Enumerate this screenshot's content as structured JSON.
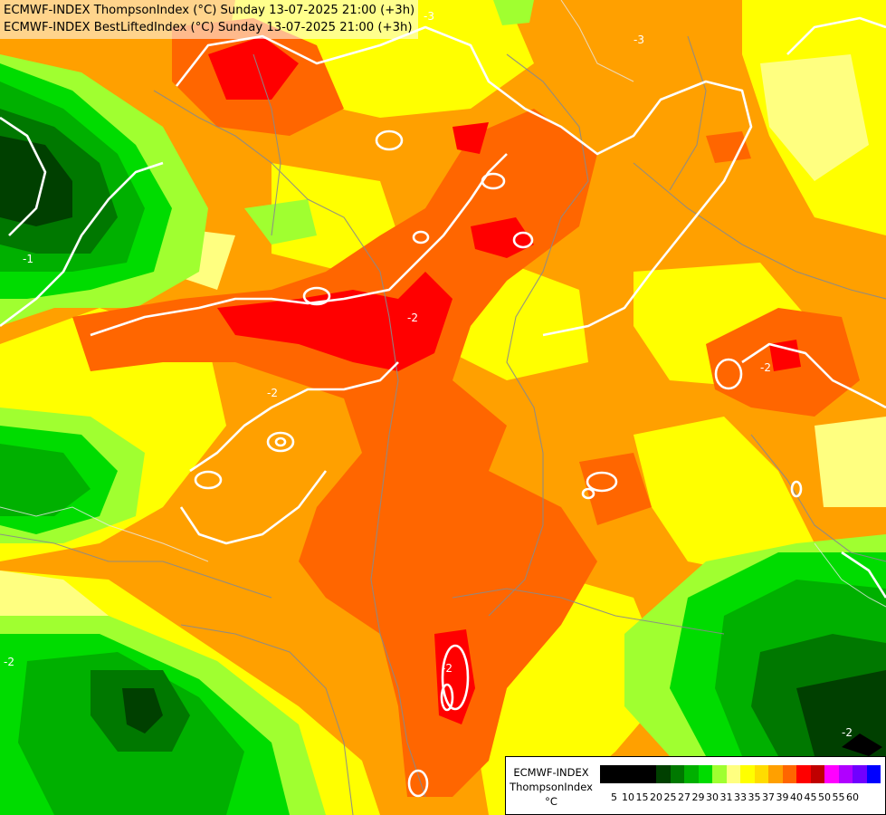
{
  "title": {
    "line1": "ECMWF-INDEX ThompsonIndex (°C) Sunday 13-07-2025 21:00 (+3h)",
    "line2": "ECMWF-INDEX BestLiftedIndex (°C) Sunday 13-07-2025 21:00 (+3h)"
  },
  "legend": {
    "line1": "ECMWF-INDEX",
    "line2": "ThompsonIndex",
    "unit": "°C",
    "ticks": [
      "5",
      "10",
      "15",
      "20",
      "25",
      "27",
      "29",
      "30",
      "31",
      "33",
      "35",
      "37",
      "39",
      "40",
      "45",
      "50",
      "55",
      "60"
    ],
    "colors": [
      "#000000",
      "#000000",
      "#000000",
      "#000000",
      "#004000",
      "#007800",
      "#00b000",
      "#00dc00",
      "#a0ff30",
      "#ffff80",
      "#ffff00",
      "#ffdc00",
      "#ffa000",
      "#ff6600",
      "#ff0000",
      "#c00000",
      "#ff00ff",
      "#b000ff",
      "#7000ff",
      "#0000ff"
    ]
  },
  "contour_labels": [
    "-3",
    "-3",
    "-1",
    "-2",
    "-2",
    "-2",
    "-2",
    "-2",
    "-2"
  ],
  "colors": {
    "background": "#ffa000",
    "contour": "#ffffff",
    "border": "#888888"
  }
}
